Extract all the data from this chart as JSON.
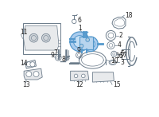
{
  "bg_color": "#ffffff",
  "lc": "#6b7b8a",
  "hc": "#5599cc",
  "hfc": "#aaccee",
  "fig_width": 2.0,
  "fig_height": 1.47,
  "dpi": 100,
  "xlim": [
    0,
    200
  ],
  "ylim": [
    0,
    147
  ]
}
